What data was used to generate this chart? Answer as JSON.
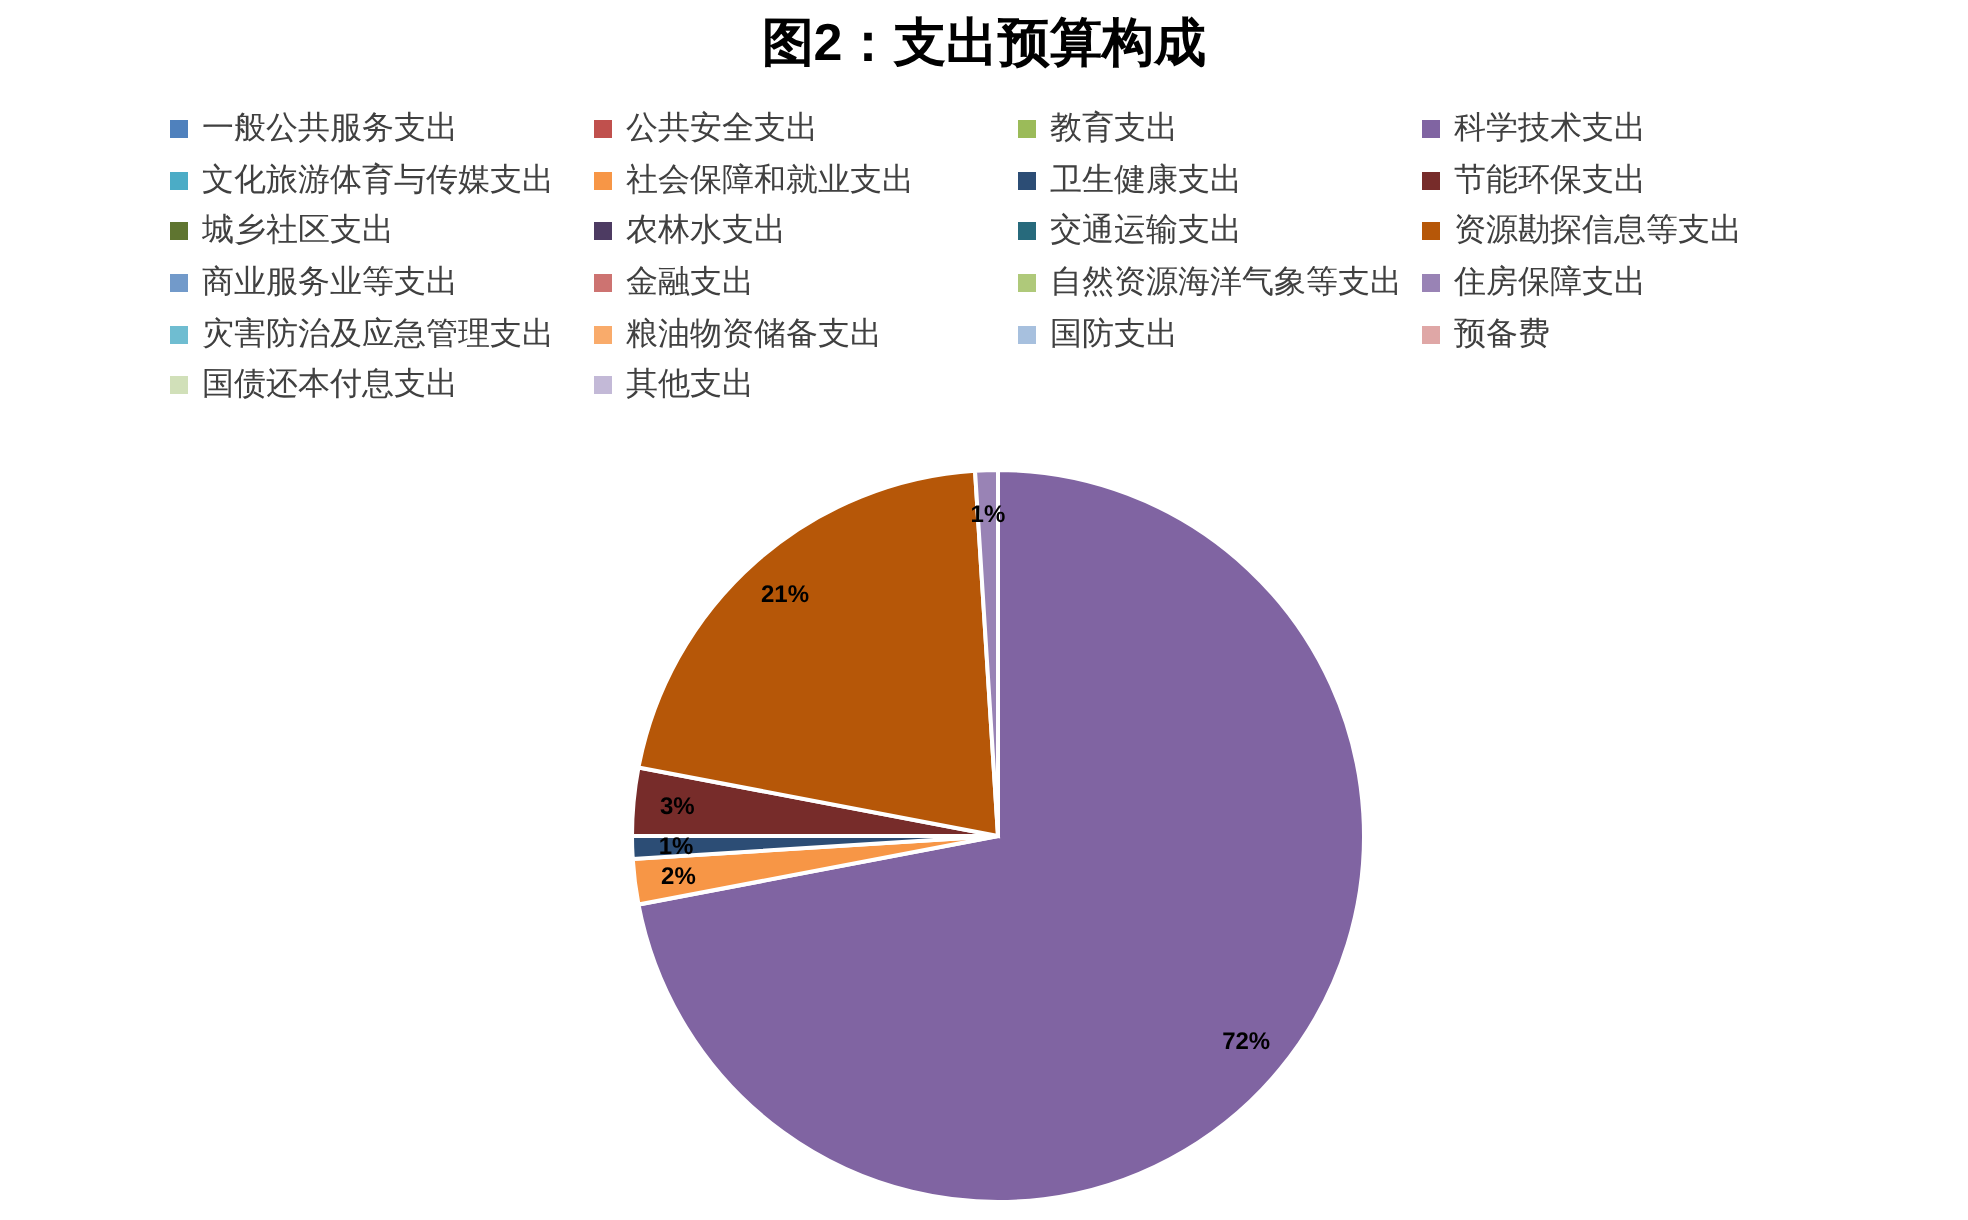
{
  "chart_data": {
    "type": "pie",
    "title": "图2：支出预算构成",
    "categories": [
      "一般公共服务支出",
      "公共安全支出",
      "教育支出",
      "科学技术支出",
      "文化旅游体育与传媒支出",
      "社会保障和就业支出",
      "卫生健康支出",
      "节能环保支出",
      "城乡社区支出",
      "农林水支出",
      "交通运输支出",
      "资源勘探信息等支出",
      "商业服务业等支出",
      "金融支出",
      "自然资源海洋气象等支出",
      "住房保障支出",
      "灾害防治及应急管理支出",
      "粮油物资储备支出",
      "国防支出",
      "预备费",
      "国债还本付息支出",
      "其他支出"
    ],
    "values": [
      0,
      0,
      0,
      72,
      0,
      2,
      1,
      3,
      0,
      0,
      0,
      21,
      0,
      0,
      0,
      1,
      0,
      0,
      0,
      0,
      0,
      0
    ],
    "colors": [
      "#4f81bd",
      "#c0504d",
      "#9bbb59",
      "#8064a2",
      "#4bacc6",
      "#f79646",
      "#2c4d75",
      "#772c2a",
      "#5f7530",
      "#4d3b62",
      "#276a7c",
      "#b65708",
      "#729aca",
      "#cd7371",
      "#afc97a",
      "#9983b5",
      "#6fbdd1",
      "#f9ab6b",
      "#a7c0de",
      "#dfa7a6",
      "#d1e0b9",
      "#c3b9d7"
    ],
    "value_labels": [
      null,
      null,
      null,
      "72%",
      null,
      "2%",
      "1%",
      "3%",
      null,
      null,
      null,
      "21%",
      null,
      null,
      null,
      "1%",
      null,
      null,
      null,
      null,
      null,
      null
    ],
    "legend": "top"
  }
}
